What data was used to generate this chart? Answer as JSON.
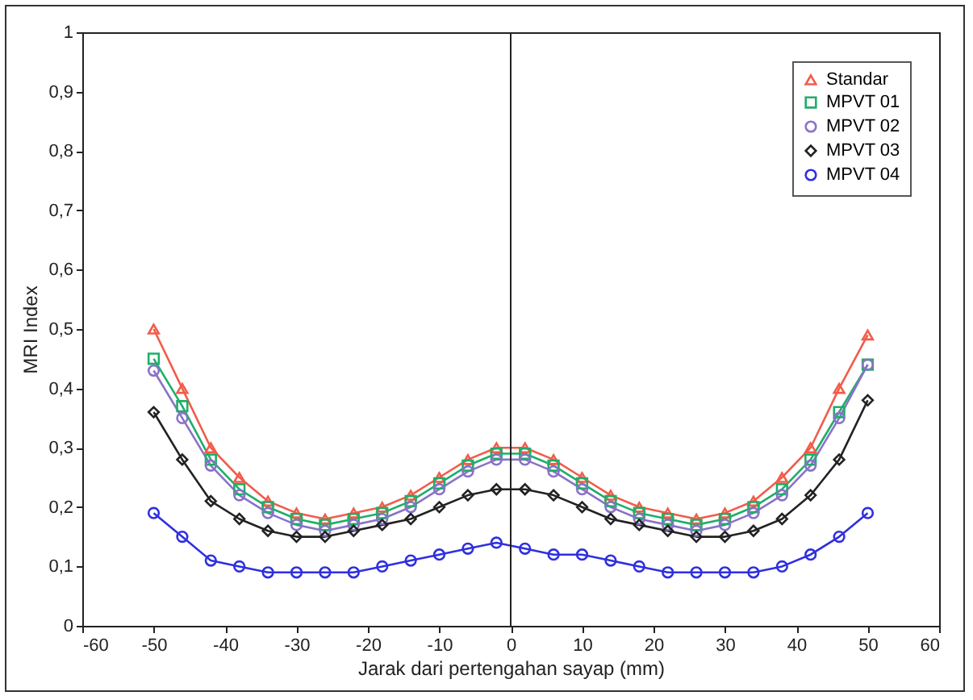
{
  "chart_data": {
    "type": "line",
    "xlabel": "Jarak dari pertengahan sayap (mm)",
    "ylabel": "MRI Index",
    "x": [
      -50,
      -46,
      -42,
      -38,
      -34,
      -30,
      -26,
      -22,
      -18,
      -14,
      -10,
      -6,
      -2,
      2,
      6,
      10,
      14,
      18,
      22,
      26,
      30,
      34,
      38,
      42,
      46,
      50
    ],
    "series": [
      {
        "name": "Standar",
        "color": "#f25c4a",
        "marker": "triangle",
        "values": [
          0.5,
          0.4,
          0.3,
          0.25,
          0.21,
          0.19,
          0.18,
          0.19,
          0.2,
          0.22,
          0.25,
          0.28,
          0.3,
          0.3,
          0.28,
          0.25,
          0.22,
          0.2,
          0.19,
          0.18,
          0.19,
          0.21,
          0.25,
          0.3,
          0.4,
          0.49
        ]
      },
      {
        "name": "MPVT 01",
        "color": "#1fae6a",
        "marker": "square",
        "values": [
          0.45,
          0.37,
          0.28,
          0.23,
          0.2,
          0.18,
          0.17,
          0.18,
          0.19,
          0.21,
          0.24,
          0.27,
          0.29,
          0.29,
          0.27,
          0.24,
          0.21,
          0.19,
          0.18,
          0.17,
          0.18,
          0.2,
          0.23,
          0.28,
          0.36,
          0.44
        ]
      },
      {
        "name": "MPVT 02",
        "color": "#8a72c8",
        "marker": "circle",
        "values": [
          0.43,
          0.35,
          0.27,
          0.22,
          0.19,
          0.17,
          0.16,
          0.17,
          0.18,
          0.2,
          0.23,
          0.26,
          0.28,
          0.28,
          0.26,
          0.23,
          0.2,
          0.18,
          0.17,
          0.16,
          0.17,
          0.19,
          0.22,
          0.27,
          0.35,
          0.44
        ]
      },
      {
        "name": "MPVT 03",
        "color": "#222222",
        "marker": "diamond",
        "values": [
          0.36,
          0.28,
          0.21,
          0.18,
          0.16,
          0.15,
          0.15,
          0.16,
          0.17,
          0.18,
          0.2,
          0.22,
          0.23,
          0.23,
          0.22,
          0.2,
          0.18,
          0.17,
          0.16,
          0.15,
          0.15,
          0.16,
          0.18,
          0.22,
          0.28,
          0.38
        ]
      },
      {
        "name": "MPVT 04",
        "color": "#2f2fe0",
        "marker": "circle",
        "values": [
          0.19,
          0.15,
          0.11,
          0.1,
          0.09,
          0.09,
          0.09,
          0.09,
          0.1,
          0.11,
          0.12,
          0.13,
          0.14,
          0.13,
          0.12,
          0.12,
          0.11,
          0.1,
          0.09,
          0.09,
          0.09,
          0.09,
          0.1,
          0.12,
          0.15,
          0.19
        ]
      }
    ],
    "xlim": [
      -60,
      60
    ],
    "xticks": [
      -60,
      -50,
      -40,
      -30,
      -20,
      -10,
      0,
      10,
      20,
      30,
      40,
      50,
      60
    ],
    "ylim": [
      0,
      1
    ],
    "yticks": [
      0,
      {
        "value": 0.1,
        "label": "0,1"
      },
      {
        "value": 0.2,
        "label": "0,2"
      },
      {
        "value": 0.3,
        "label": "0,3"
      },
      {
        "value": 0.4,
        "label": "0,4"
      },
      {
        "value": 0.5,
        "label": "0,5"
      },
      {
        "value": 0.6,
        "label": "0,6"
      },
      {
        "value": 0.7,
        "label": "0,7"
      },
      {
        "value": 0.8,
        "label": "0,8"
      },
      {
        "value": 0.9,
        "label": "0,9"
      },
      1
    ],
    "ref_lines": [
      {
        "axis": "x",
        "value": 0,
        "color": "#222222"
      }
    ],
    "grid": false,
    "legend": "top right",
    "line_style": "solid"
  }
}
